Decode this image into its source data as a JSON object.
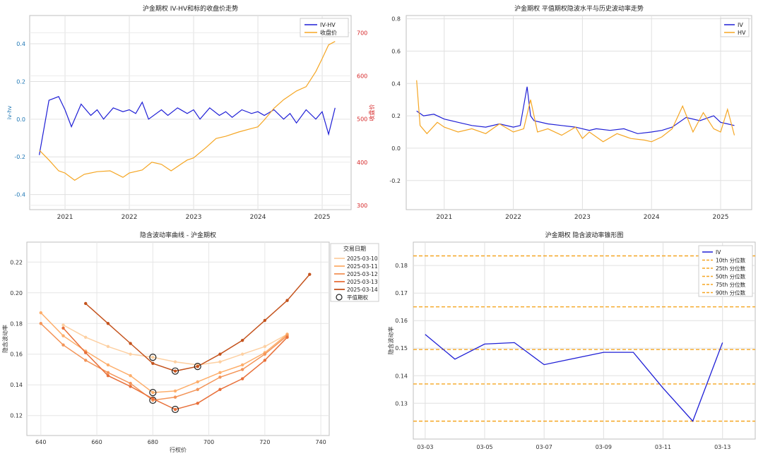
{
  "chart_data": [
    {
      "id": "c1",
      "type": "line",
      "title": "沪金期权 IV-HV和标的收盘价走势",
      "xlabel": "",
      "ylabel": "iv-hv",
      "y2label": "收盘价",
      "xlim": [
        2020.45,
        2025.45
      ],
      "ylim": [
        -0.48,
        0.55
      ],
      "y2lim": [
        290,
        740
      ],
      "xticks": [
        "2021",
        "2022",
        "2023",
        "2024",
        "2025"
      ],
      "yticks": [
        "-0.4",
        "-0.2",
        "0.0",
        "0.2",
        "0.4"
      ],
      "y2ticks": [
        "300",
        "400",
        "500",
        "600",
        "700"
      ],
      "legend": "top-right",
      "series": [
        {
          "name": "IV-HV",
          "axis": "left",
          "color": "#1f1fd6",
          "x": [
            2020.6,
            2020.75,
            2020.9,
            2021.0,
            2021.1,
            2021.25,
            2021.4,
            2021.5,
            2021.6,
            2021.75,
            2021.9,
            2022.0,
            2022.1,
            2022.2,
            2022.3,
            2022.5,
            2022.6,
            2022.75,
            2022.9,
            2023.0,
            2023.1,
            2023.25,
            2023.4,
            2023.5,
            2023.6,
            2023.75,
            2023.9,
            2024.0,
            2024.1,
            2024.25,
            2024.4,
            2024.5,
            2024.6,
            2024.75,
            2024.9,
            2025.0,
            2025.1,
            2025.2
          ],
          "values": [
            -0.19,
            0.1,
            0.12,
            0.05,
            -0.04,
            0.08,
            0.02,
            0.05,
            0.0,
            0.06,
            0.04,
            0.05,
            0.03,
            0.09,
            0.0,
            0.05,
            0.02,
            0.06,
            0.03,
            0.05,
            0.0,
            0.06,
            0.02,
            0.04,
            0.01,
            0.05,
            0.03,
            0.04,
            0.02,
            0.05,
            0.0,
            0.03,
            -0.02,
            0.05,
            0.0,
            0.04,
            -0.08,
            0.06
          ]
        },
        {
          "name": "收盘价",
          "axis": "right",
          "color": "#f5a623",
          "x": [
            2020.6,
            2020.75,
            2020.9,
            2021.0,
            2021.15,
            2021.3,
            2021.5,
            2021.7,
            2021.9,
            2022.0,
            2022.2,
            2022.35,
            2022.5,
            2022.65,
            2022.8,
            2022.9,
            2023.0,
            2023.2,
            2023.35,
            2023.5,
            2023.7,
            2023.9,
            2024.0,
            2024.1,
            2024.25,
            2024.4,
            2024.6,
            2024.75,
            2024.9,
            2025.0,
            2025.1,
            2025.2
          ],
          "values": [
            428,
            405,
            380,
            375,
            358,
            372,
            378,
            380,
            365,
            375,
            382,
            400,
            395,
            380,
            395,
            405,
            410,
            435,
            455,
            460,
            470,
            478,
            482,
            498,
            525,
            545,
            565,
            575,
            610,
            640,
            672,
            680
          ]
        }
      ]
    },
    {
      "id": "c2",
      "type": "line",
      "title": "沪金期权 平值期权隐波水平与历史波动率走势",
      "xlabel": "",
      "ylabel": "",
      "xlim": [
        2020.45,
        2025.45
      ],
      "ylim": [
        -0.38,
        0.82
      ],
      "xticks": [
        "2021",
        "2022",
        "2023",
        "2024",
        "2025"
      ],
      "yticks": [
        "-0.2",
        "0.0",
        "0.2",
        "0.4",
        "0.6",
        "0.8"
      ],
      "legend": "top-right",
      "series": [
        {
          "name": "IV",
          "color": "#1f1fd6",
          "x": [
            2020.6,
            2020.7,
            2020.85,
            2021.0,
            2021.2,
            2021.4,
            2021.6,
            2021.8,
            2022.0,
            2022.1,
            2022.2,
            2022.25,
            2022.3,
            2022.5,
            2022.7,
            2022.9,
            2023.0,
            2023.1,
            2023.2,
            2023.4,
            2023.6,
            2023.8,
            2024.0,
            2024.15,
            2024.3,
            2024.5,
            2024.7,
            2024.9,
            2025.0,
            2025.1,
            2025.2
          ],
          "values": [
            0.23,
            0.2,
            0.21,
            0.18,
            0.16,
            0.14,
            0.13,
            0.15,
            0.13,
            0.14,
            0.38,
            0.2,
            0.17,
            0.15,
            0.14,
            0.13,
            0.12,
            0.11,
            0.12,
            0.11,
            0.12,
            0.09,
            0.1,
            0.11,
            0.13,
            0.19,
            0.17,
            0.2,
            0.16,
            0.15,
            0.14
          ]
        },
        {
          "name": "HV",
          "color": "#f5a623",
          "x": [
            2020.6,
            2020.65,
            2020.75,
            2020.9,
            2021.0,
            2021.2,
            2021.4,
            2021.6,
            2021.8,
            2022.0,
            2022.15,
            2022.25,
            2022.35,
            2022.5,
            2022.7,
            2022.9,
            2023.0,
            2023.1,
            2023.3,
            2023.5,
            2023.7,
            2023.9,
            2024.0,
            2024.15,
            2024.3,
            2024.45,
            2024.6,
            2024.75,
            2024.9,
            2025.0,
            2025.1,
            2025.2
          ],
          "values": [
            0.42,
            0.14,
            0.09,
            0.16,
            0.13,
            0.1,
            0.12,
            0.09,
            0.15,
            0.1,
            0.12,
            0.3,
            0.1,
            0.12,
            0.08,
            0.13,
            0.06,
            0.1,
            0.04,
            0.09,
            0.06,
            0.05,
            0.04,
            0.07,
            0.12,
            0.26,
            0.1,
            0.22,
            0.12,
            0.1,
            0.24,
            0.08
          ]
        }
      ]
    },
    {
      "id": "c3",
      "type": "line",
      "title": "隐含波动率曲线 - 沪金期权",
      "xlabel": "行权价",
      "ylabel": "隐含波动率",
      "xlim": [
        635,
        743
      ],
      "ylim": [
        0.107,
        0.233
      ],
      "xticks": [
        "640",
        "660",
        "680",
        "700",
        "720",
        "740"
      ],
      "yticks": [
        "0.12",
        "0.14",
        "0.16",
        "0.18",
        "0.20",
        "0.22"
      ],
      "legend_title": "交易日期",
      "legend": "outside-right",
      "atm_label": "平值期权",
      "series": [
        {
          "name": "2025-03-10",
          "color": "#fdd0a2",
          "x": [
            648,
            656,
            664,
            672,
            680,
            688,
            696,
            704,
            712,
            720,
            728
          ],
          "values": [
            0.179,
            0.171,
            0.165,
            0.16,
            0.158,
            0.155,
            0.153,
            0.155,
            0.16,
            0.165,
            0.173
          ],
          "atm": [
            680
          ]
        },
        {
          "name": "2025-03-11",
          "color": "#fdae6b",
          "x": [
            640,
            648,
            656,
            664,
            672,
            680,
            688,
            696,
            704,
            712,
            720,
            728
          ],
          "values": [
            0.187,
            0.172,
            0.162,
            0.153,
            0.146,
            0.135,
            0.136,
            0.142,
            0.148,
            0.153,
            0.161,
            0.173
          ],
          "atm": [
            680
          ]
        },
        {
          "name": "2025-03-12",
          "color": "#f39458",
          "x": [
            640,
            648,
            656,
            664,
            672,
            680,
            688,
            696,
            704,
            712,
            720,
            728
          ],
          "values": [
            0.18,
            0.166,
            0.156,
            0.148,
            0.141,
            0.13,
            0.132,
            0.137,
            0.145,
            0.15,
            0.16,
            0.172
          ],
          "atm": [
            680
          ]
        },
        {
          "name": "2025-03-13",
          "color": "#e8703a",
          "x": [
            648,
            656,
            664,
            672,
            680,
            688,
            696,
            704,
            712,
            720,
            728
          ],
          "values": [
            0.177,
            0.161,
            0.146,
            0.139,
            0.131,
            0.124,
            0.128,
            0.137,
            0.144,
            0.156,
            0.171
          ],
          "atm": [
            688
          ]
        },
        {
          "name": "2025-03-14",
          "color": "#c4531d",
          "x": [
            656,
            664,
            672,
            680,
            688,
            696,
            704,
            712,
            720,
            728,
            736
          ],
          "values": [
            0.193,
            0.18,
            0.167,
            0.154,
            0.149,
            0.152,
            0.16,
            0.169,
            0.182,
            0.195,
            0.212
          ],
          "atm": [
            688,
            696
          ]
        }
      ]
    },
    {
      "id": "c4",
      "type": "line",
      "title": "沪金期权 隐含波动率锥形图",
      "xlabel": "",
      "ylabel": "隐含波动率",
      "xlim": [
        -0.2,
        5.55
      ],
      "ylim": [
        0.117,
        0.1885
      ],
      "xticks": [
        "03-03",
        "03-05",
        "03-07",
        "03-09",
        "03-11",
        "03-13"
      ],
      "yticks": [
        "0.13",
        "0.14",
        "0.15",
        "0.16",
        "0.17",
        "0.18"
      ],
      "legend": "top-right",
      "series": [
        {
          "name": "IV",
          "color": "#1f1fd6",
          "x": [
            0,
            0.5,
            1,
            1.5,
            2,
            3,
            3.5,
            4,
            4.5,
            5
          ],
          "values": [
            0.155,
            0.146,
            0.1515,
            0.152,
            0.144,
            0.1485,
            0.1485,
            0.1355,
            0.1235,
            0.152
          ]
        }
      ],
      "percentiles": [
        {
          "name": "10th 分位数",
          "value": 0.1235,
          "color": "#f5a623"
        },
        {
          "name": "25th 分位数",
          "value": 0.137,
          "color": "#f5a623"
        },
        {
          "name": "50th 分位数",
          "value": 0.1495,
          "color": "#f5a623"
        },
        {
          "name": "75th 分位数",
          "value": 0.165,
          "color": "#f5a623"
        },
        {
          "name": "90th 分位数",
          "value": 0.1835,
          "color": "#f5a623"
        }
      ]
    }
  ]
}
